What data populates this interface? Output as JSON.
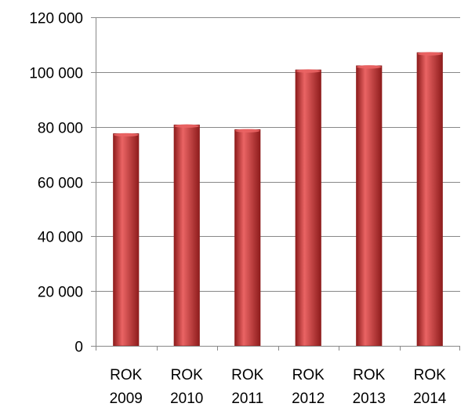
{
  "chart_data": {
    "type": "bar",
    "categories": [
      [
        "ROK",
        "2009"
      ],
      [
        "ROK",
        "2010"
      ],
      [
        "ROK",
        "2011"
      ],
      [
        "ROK",
        "2012"
      ],
      [
        "ROK",
        "2013"
      ],
      [
        "ROK",
        "2014"
      ]
    ],
    "values": [
      77500,
      80700,
      79000,
      100800,
      102300,
      107100
    ],
    "ylim": [
      0,
      120000
    ],
    "yticks": [
      0,
      20000,
      40000,
      60000,
      80000,
      100000,
      120000
    ],
    "ytick_labels": [
      "0",
      "20 000",
      "40 000",
      "60 000",
      "80 000",
      "100 000",
      "120 000"
    ],
    "grid": true,
    "bar_color": "#d63a3a",
    "bar_color_dark": "#8e1c1c",
    "bar_color_light": "#ea6464"
  }
}
